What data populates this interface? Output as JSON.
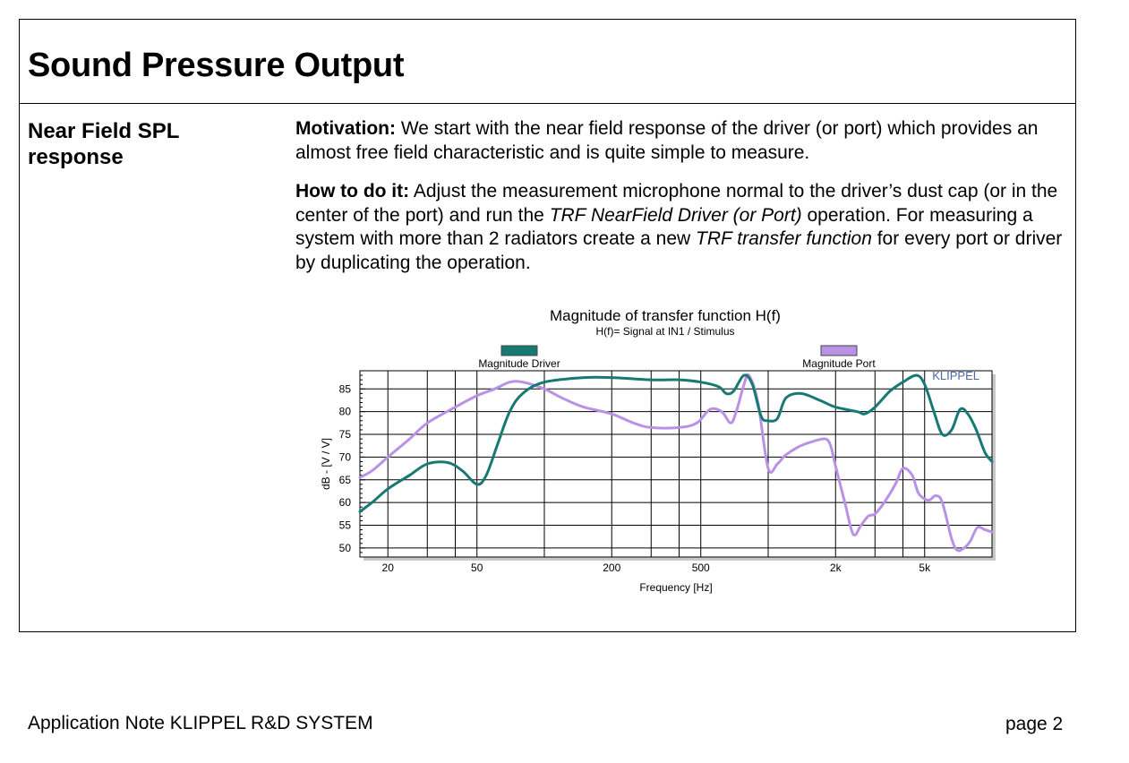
{
  "header": {
    "title": "Sound Pressure Output"
  },
  "section": {
    "label": "Near Field SPL response",
    "motivation": {
      "label": "Motivation:",
      "text": " We start with the near field response of the driver (or port) which provides an almost free field characteristic and is quite simple to measure."
    },
    "how_to": {
      "label": "How to do it:",
      "text1": " Adjust the measurement microphone normal to the driver’s dust cap (or in the center of the port) and run the ",
      "italic1": "TRF NearField Driver (or Port)",
      "text2": " operation. For measuring a system with more than 2 radiators create a new ",
      "italic2": "TRF transfer function",
      "text3": " for every port or driver by duplicating the operation."
    }
  },
  "chart_data": {
    "type": "line",
    "title": "Magnitude of transfer function H(f)",
    "subtitle": "H(f)= Signal at IN1 / Stimulus",
    "xlabel": "Frequency [Hz]",
    "ylabel": "dB - [V / V]",
    "xscale": "log",
    "xlim": [
      15,
      10000
    ],
    "ylim": [
      48,
      89
    ],
    "xticks": [
      20,
      50,
      200,
      500,
      2000,
      5000
    ],
    "xtick_labels": [
      "20",
      "50",
      "200",
      "500",
      "2k",
      "5k"
    ],
    "yticks": [
      50,
      55,
      60,
      65,
      70,
      75,
      80,
      85
    ],
    "watermark": "KLIPPEL",
    "legend_placement": "top",
    "series": [
      {
        "name": "Magnitude  Driver",
        "color": "#177a72",
        "points": [
          [
            15,
            58
          ],
          [
            17,
            60
          ],
          [
            20,
            63
          ],
          [
            25,
            66
          ],
          [
            30,
            68.5
          ],
          [
            37,
            68.8
          ],
          [
            43,
            67
          ],
          [
            50,
            64
          ],
          [
            55,
            66
          ],
          [
            62,
            73
          ],
          [
            70,
            80
          ],
          [
            80,
            84
          ],
          [
            100,
            86.5
          ],
          [
            150,
            87.5
          ],
          [
            200,
            87.5
          ],
          [
            300,
            87
          ],
          [
            400,
            87
          ],
          [
            500,
            86.5
          ],
          [
            600,
            85.5
          ],
          [
            650,
            84
          ],
          [
            700,
            84.5
          ],
          [
            780,
            88
          ],
          [
            850,
            86
          ],
          [
            930,
            79
          ],
          [
            1000,
            78
          ],
          [
            1100,
            78.5
          ],
          [
            1200,
            83
          ],
          [
            1400,
            84
          ],
          [
            1700,
            82.5
          ],
          [
            2000,
            81
          ],
          [
            2500,
            80
          ],
          [
            2700,
            79.5
          ],
          [
            3000,
            81
          ],
          [
            3500,
            84.5
          ],
          [
            4000,
            86.5
          ],
          [
            4600,
            88
          ],
          [
            5000,
            86
          ],
          [
            5500,
            80
          ],
          [
            6000,
            75
          ],
          [
            6600,
            76
          ],
          [
            7200,
            80.5
          ],
          [
            7800,
            79.5
          ],
          [
            8500,
            76
          ],
          [
            9300,
            71
          ],
          [
            10000,
            69
          ]
        ]
      },
      {
        "name": "Magnitude  Port",
        "color": "#b992e6",
        "points": [
          [
            15,
            65.5
          ],
          [
            17,
            67
          ],
          [
            20,
            70
          ],
          [
            25,
            74
          ],
          [
            30,
            77.5
          ],
          [
            40,
            81
          ],
          [
            50,
            83.5
          ],
          [
            60,
            85
          ],
          [
            70,
            86.5
          ],
          [
            80,
            86.5
          ],
          [
            100,
            85
          ],
          [
            120,
            83
          ],
          [
            150,
            81
          ],
          [
            200,
            79.5
          ],
          [
            250,
            77.5
          ],
          [
            300,
            76.5
          ],
          [
            400,
            76.5
          ],
          [
            480,
            77.5
          ],
          [
            550,
            80.5
          ],
          [
            620,
            80
          ],
          [
            680,
            77.5
          ],
          [
            720,
            80
          ],
          [
            780,
            86
          ],
          [
            820,
            88
          ],
          [
            900,
            82
          ],
          [
            1000,
            67.5
          ],
          [
            1100,
            68.5
          ],
          [
            1200,
            70.5
          ],
          [
            1400,
            72.5
          ],
          [
            1600,
            73.5
          ],
          [
            1800,
            74
          ],
          [
            1900,
            72.5
          ],
          [
            2000,
            68
          ],
          [
            2200,
            60
          ],
          [
            2400,
            53
          ],
          [
            2600,
            55
          ],
          [
            2800,
            57
          ],
          [
            3000,
            57.5
          ],
          [
            3300,
            60
          ],
          [
            3700,
            64
          ],
          [
            4000,
            67.5
          ],
          [
            4400,
            66
          ],
          [
            4700,
            62
          ],
          [
            5200,
            60.5
          ],
          [
            5600,
            61.5
          ],
          [
            6000,
            60
          ],
          [
            6600,
            52
          ],
          [
            7000,
            49.5
          ],
          [
            7500,
            50
          ],
          [
            8000,
            51.5
          ],
          [
            8600,
            54.5
          ],
          [
            9300,
            54
          ],
          [
            10000,
            53.5
          ]
        ]
      }
    ]
  },
  "footer": {
    "left": "Application Note KLIPPEL R&D SYSTEM",
    "right": "page 2"
  }
}
